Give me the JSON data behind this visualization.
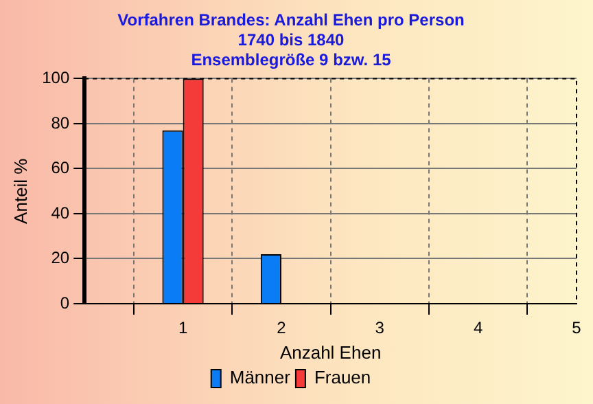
{
  "chart_data": {
    "type": "bar",
    "title": "Vorfahren Brandes: Anzahl Ehen pro Person",
    "subtitle": "1740 bis 1840\nEnsemblegröße 9 bzw. 15",
    "xlabel": "Anzahl Ehen",
    "ylabel": "Anteil %",
    "x": [
      1,
      2,
      3,
      4,
      5
    ],
    "series": [
      {
        "name": "Männer",
        "color": "#0a7cf5",
        "values": [
          77,
          22,
          0,
          0,
          0
        ]
      },
      {
        "name": "Frauen",
        "color": "#f53a3a",
        "values": [
          100,
          0,
          0,
          0,
          0
        ]
      }
    ],
    "xlim": [
      0,
      5
    ],
    "xticks": [
      1,
      2,
      3,
      4,
      5
    ],
    "ylim": [
      0,
      100
    ],
    "yticks": [
      0,
      20,
      40,
      60,
      80,
      100
    ],
    "grid": true,
    "legend": "bottom"
  }
}
